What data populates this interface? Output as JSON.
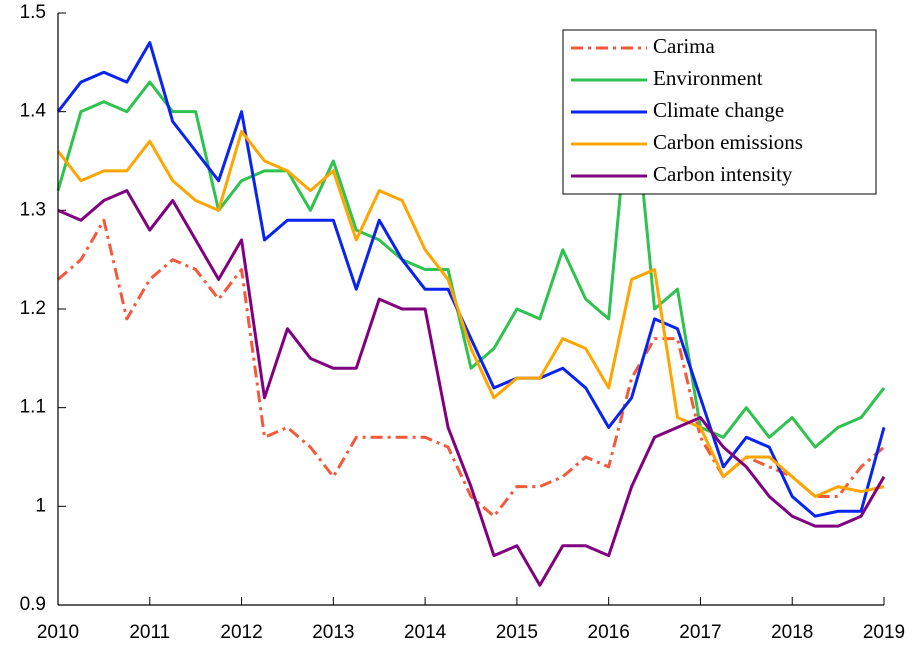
{
  "chart_data": {
    "type": "line",
    "x": [
      2010,
      2010.25,
      2010.5,
      2010.75,
      2011,
      2011.25,
      2011.5,
      2011.75,
      2012,
      2012.25,
      2012.5,
      2012.75,
      2013,
      2013.25,
      2013.5,
      2013.75,
      2014,
      2014.25,
      2014.5,
      2014.75,
      2015,
      2015.25,
      2015.5,
      2015.75,
      2016,
      2016.25,
      2016.5,
      2016.75,
      2017,
      2017.25,
      2017.5,
      2017.75,
      2018,
      2018.25,
      2018.5,
      2018.75,
      2019
    ],
    "series": [
      {
        "name": "Carima",
        "color": "#f4593c",
        "line_style": "dash-dot",
        "values": [
          1.23,
          1.25,
          1.29,
          1.19,
          1.23,
          1.25,
          1.24,
          1.21,
          1.24,
          1.07,
          1.08,
          1.06,
          1.03,
          1.07,
          1.07,
          1.07,
          1.07,
          1.06,
          1.01,
          0.99,
          1.02,
          1.02,
          1.03,
          1.05,
          1.04,
          1.13,
          1.17,
          1.17,
          1.07,
          1.03,
          1.05,
          1.04,
          1.03,
          1.01,
          1.01,
          1.04,
          1.06
        ]
      },
      {
        "name": "Environment",
        "color": "#2ec24f",
        "line_style": "solid",
        "values": [
          1.32,
          1.4,
          1.41,
          1.4,
          1.43,
          1.4,
          1.4,
          1.3,
          1.33,
          1.34,
          1.34,
          1.3,
          1.35,
          1.28,
          1.27,
          1.25,
          1.24,
          1.24,
          1.14,
          1.16,
          1.2,
          1.19,
          1.26,
          1.21,
          1.19,
          1.44,
          1.2,
          1.22,
          1.08,
          1.07,
          1.1,
          1.07,
          1.09,
          1.06,
          1.08,
          1.09,
          1.12
        ]
      },
      {
        "name": "Climate change",
        "color": "#0a24f0",
        "line_style": "solid",
        "values": [
          1.4,
          1.43,
          1.44,
          1.43,
          1.47,
          1.39,
          1.36,
          1.33,
          1.4,
          1.27,
          1.29,
          1.29,
          1.29,
          1.22,
          1.29,
          1.25,
          1.22,
          1.22,
          1.17,
          1.12,
          1.13,
          1.13,
          1.14,
          1.12,
          1.08,
          1.11,
          1.19,
          1.18,
          1.11,
          1.04,
          1.07,
          1.06,
          1.01,
          0.99,
          0.995,
          0.995,
          1.08
        ]
      },
      {
        "name": "Carbon emissions",
        "color": "#ffa500",
        "line_style": "solid",
        "values": [
          1.36,
          1.33,
          1.34,
          1.34,
          1.37,
          1.33,
          1.31,
          1.3,
          1.38,
          1.35,
          1.34,
          1.32,
          1.34,
          1.27,
          1.32,
          1.31,
          1.26,
          1.23,
          1.16,
          1.11,
          1.13,
          1.13,
          1.17,
          1.16,
          1.12,
          1.23,
          1.24,
          1.09,
          1.08,
          1.03,
          1.05,
          1.05,
          1.03,
          1.01,
          1.02,
          1.015,
          1.02
        ]
      },
      {
        "name": "Carbon intensity",
        "color": "#800080",
        "line_style": "solid",
        "values": [
          1.3,
          1.29,
          1.31,
          1.32,
          1.28,
          1.31,
          1.27,
          1.23,
          1.27,
          1.11,
          1.18,
          1.15,
          1.14,
          1.14,
          1.21,
          1.2,
          1.2,
          1.08,
          1.02,
          0.95,
          0.96,
          0.92,
          0.96,
          0.96,
          0.95,
          1.02,
          1.07,
          1.08,
          1.09,
          1.06,
          1.04,
          1.01,
          0.99,
          0.98,
          0.98,
          0.99,
          1.03
        ]
      }
    ],
    "xlim": [
      2010,
      2019
    ],
    "xticks": [
      2010,
      2011,
      2012,
      2013,
      2014,
      2015,
      2016,
      2017,
      2018,
      2019
    ],
    "ylim": [
      0.9,
      1.5
    ],
    "yticks": [
      0.9,
      1,
      1.1,
      1.2,
      1.3,
      1.4,
      1.5
    ],
    "grid": false,
    "legend": "upper right"
  }
}
